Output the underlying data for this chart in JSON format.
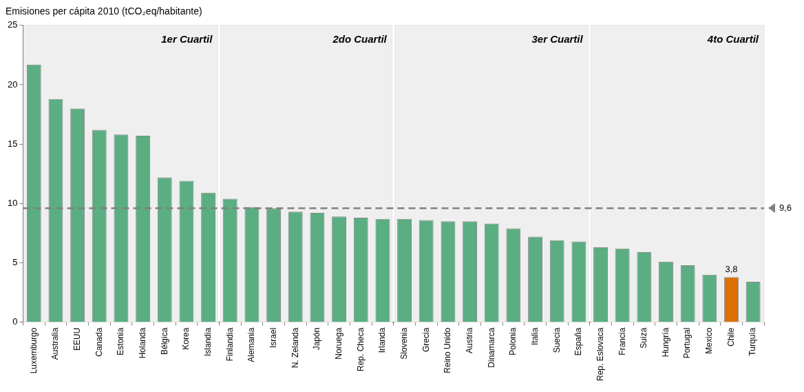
{
  "chart_data": {
    "type": "bar",
    "title": "Emisiones per cápita 2010 (tCO₂eq/habitante)",
    "categories": [
      "Luxemburgo",
      "Australia",
      "EEUU",
      "Canada",
      "Estonia",
      "Holanda",
      "Bélgica",
      "Korea",
      "Islandia",
      "Finlandia",
      "Alemania",
      "Israel",
      "N. Zelanda",
      "Japón",
      "Noruega",
      "Rep. Checa",
      "Irlanda",
      "Slovenia",
      "Grecia",
      "Reino Unido",
      "Austria",
      "Dinamarca",
      "Polonia",
      "Italia",
      "Suecia",
      "España",
      "Rep. Eslovaca",
      "Francia",
      "Suiza",
      "Hungría",
      "Portugal",
      "Mexico",
      "Chile",
      "Turquía"
    ],
    "values": [
      21.7,
      18.8,
      18.0,
      16.2,
      15.8,
      15.7,
      12.2,
      11.9,
      10.9,
      10.4,
      9.7,
      9.6,
      9.3,
      9.2,
      8.9,
      8.8,
      8.7,
      8.7,
      8.6,
      8.5,
      8.5,
      8.3,
      7.9,
      7.2,
      6.9,
      6.8,
      6.3,
      6.2,
      5.9,
      5.1,
      4.8,
      4.0,
      3.8,
      3.4
    ],
    "colors": [
      "#5aae82",
      "#5aae82",
      "#5aae82",
      "#5aae82",
      "#5aae82",
      "#5aae82",
      "#5aae82",
      "#5aae82",
      "#5aae82",
      "#5aae82",
      "#5aae82",
      "#5aae82",
      "#5aae82",
      "#5aae82",
      "#5aae82",
      "#5aae82",
      "#5aae82",
      "#5aae82",
      "#5aae82",
      "#5aae82",
      "#5aae82",
      "#5aae82",
      "#5aae82",
      "#5aae82",
      "#5aae82",
      "#5aae82",
      "#5aae82",
      "#5aae82",
      "#5aae82",
      "#5aae82",
      "#5aae82",
      "#5aae82",
      "#dd6f00",
      "#5aae82"
    ],
    "value_labels": [
      null,
      null,
      null,
      null,
      null,
      null,
      null,
      null,
      null,
      null,
      null,
      null,
      null,
      null,
      null,
      null,
      null,
      null,
      null,
      null,
      null,
      null,
      null,
      null,
      null,
      null,
      null,
      null,
      null,
      null,
      null,
      null,
      "3,8",
      null
    ],
    "ylim": [
      0,
      25
    ],
    "yticks": [
      0,
      5,
      10,
      15,
      20,
      25
    ],
    "grid": false,
    "legend": false,
    "ref_lines": [
      {
        "axis": "y",
        "value": 9.6,
        "label": "9,6",
        "color": "#808080",
        "line_style": "dashed"
      }
    ],
    "bands": [
      {
        "axis": "x",
        "from": "Luxemburgo",
        "to": "Islandia",
        "label": "1er Cuartil",
        "color": "#efefef"
      },
      {
        "axis": "x",
        "from": "Finlandia",
        "to": "Irlanda",
        "label": "2do Cuartil",
        "color": "#efefef"
      },
      {
        "axis": "x",
        "from": "Slovenia",
        "to": "España",
        "label": "3er Cuartil",
        "color": "#efefef"
      },
      {
        "axis": "x",
        "from": "Rep. Eslovaca",
        "to": "Turquía",
        "label": "4to Cuartil",
        "color": "#efefef"
      }
    ]
  }
}
